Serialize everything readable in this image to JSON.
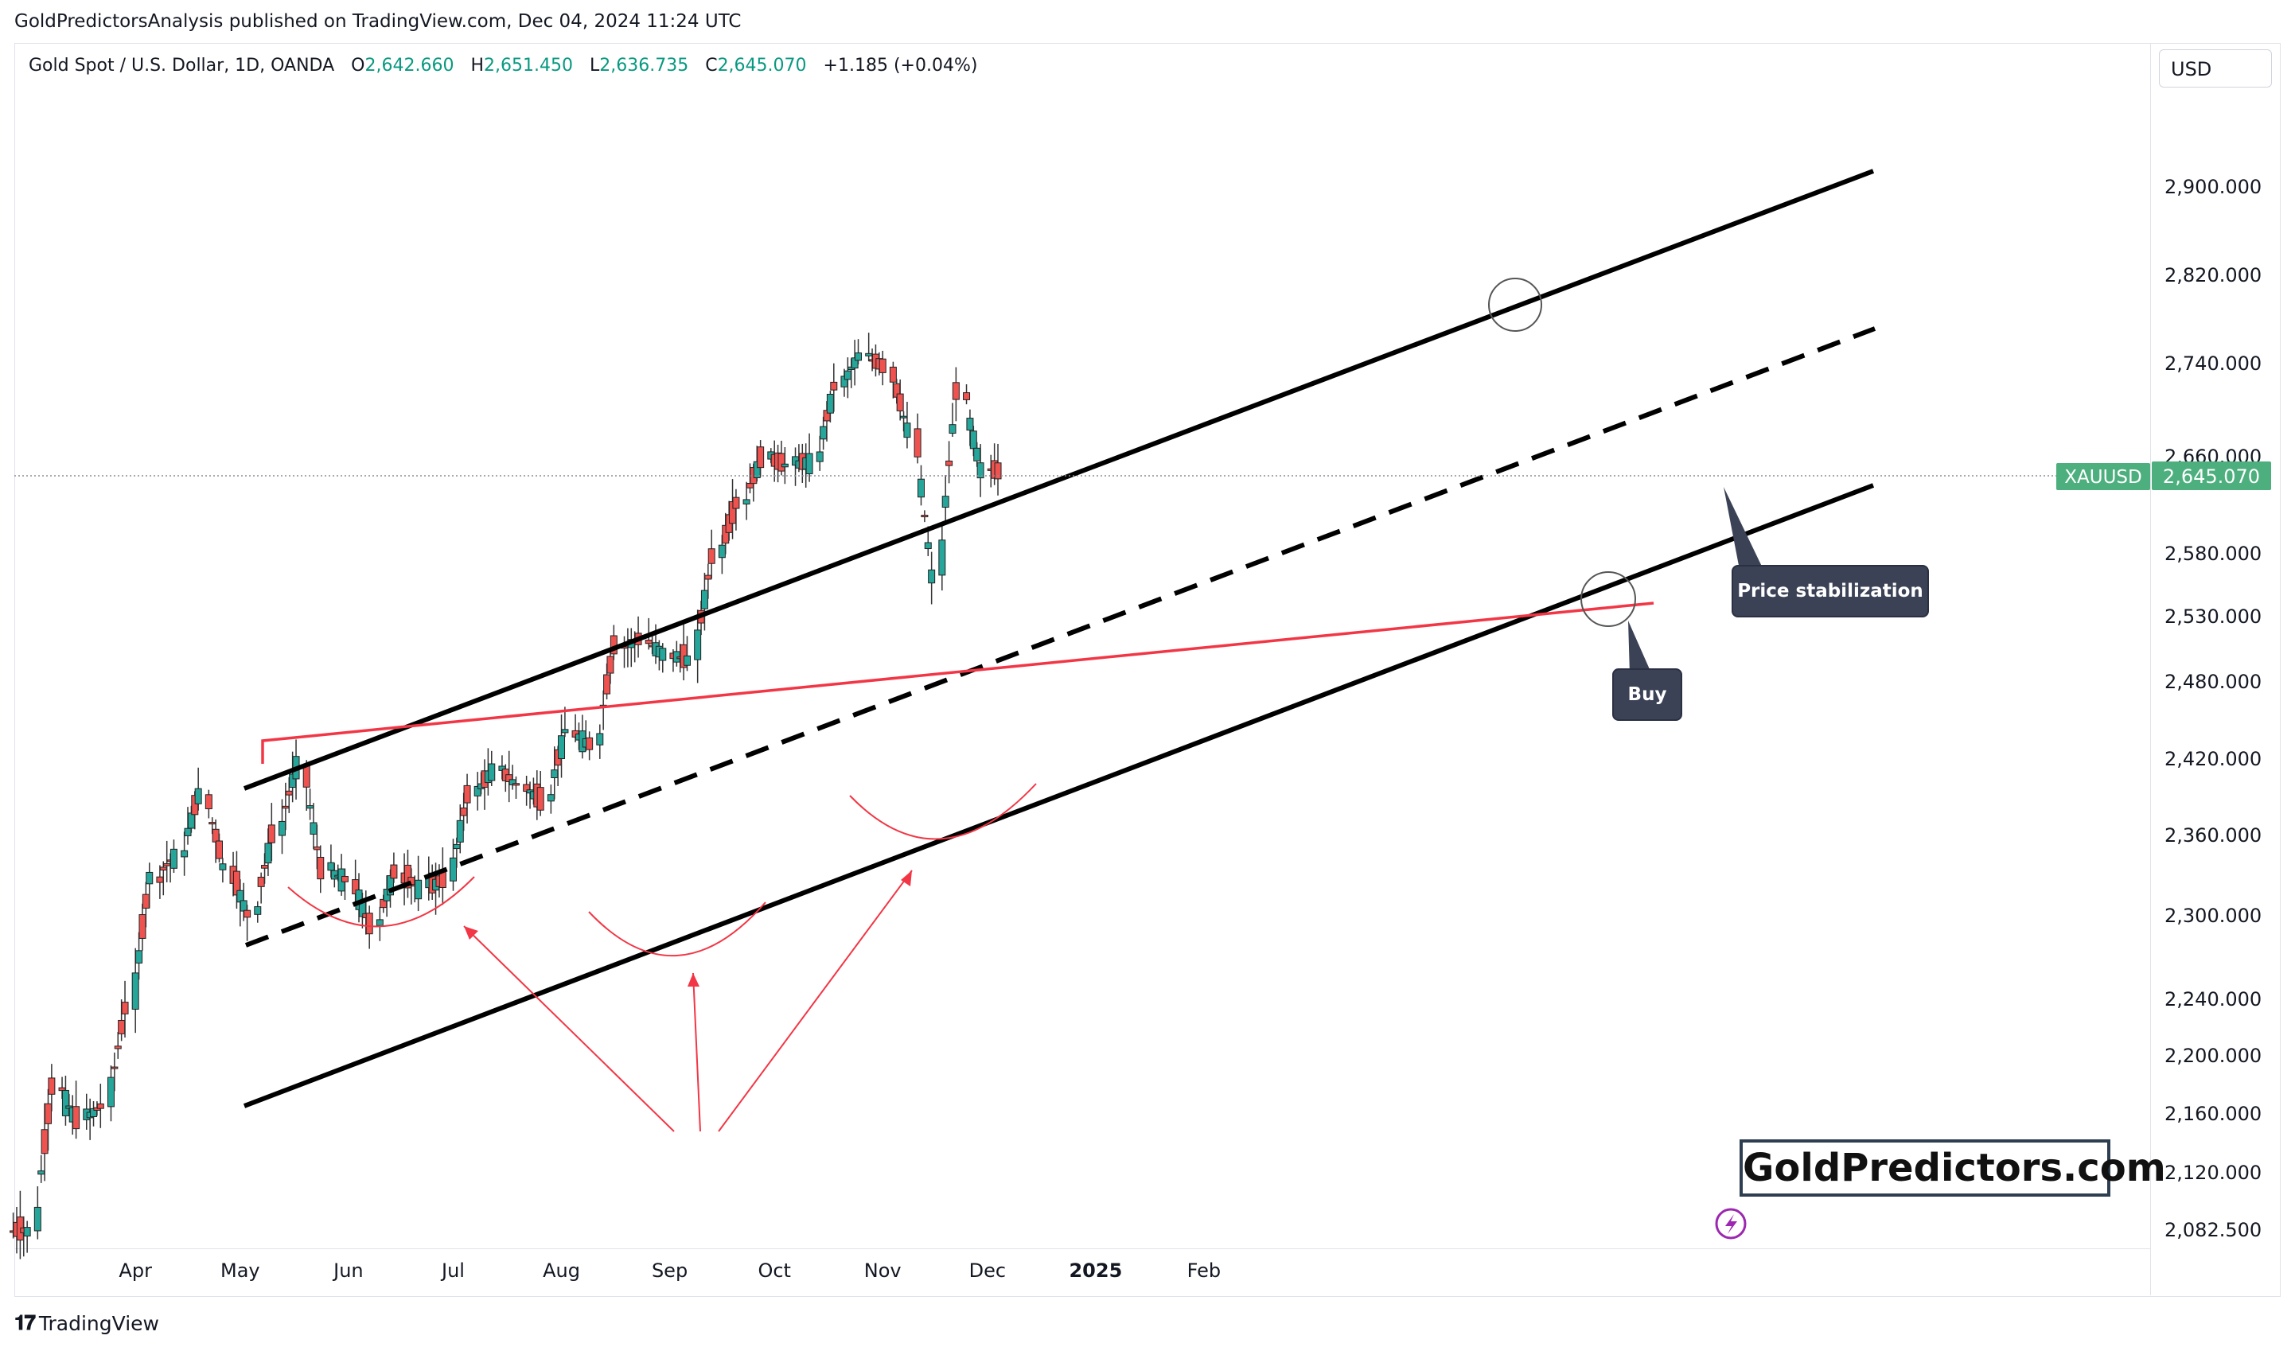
{
  "publisher_line": "GoldPredictorsAnalysis published on TradingView.com, Dec 04, 2024 11:24 UTC",
  "legend": {
    "symbol": "Gold Spot / U.S. Dollar, 1D, OANDA",
    "open_label": "O",
    "open": "2,642.660",
    "high_label": "H",
    "high": "2,651.450",
    "low_label": "L",
    "low": "2,636.735",
    "close_label": "C",
    "close": "2,645.070",
    "change": "+1.185 (+0.04%)"
  },
  "currency_button": "USD",
  "price_tag": {
    "symbol": "XAUUSD",
    "value": "2,645.070",
    "color": "#4caf7d"
  },
  "footer_brand": "TradingView",
  "watermark": "GoldPredictors.com",
  "annotations": {
    "buy": "Buy",
    "price_stabilization": "Price stabilization"
  },
  "colors": {
    "up": "#26a69a",
    "down": "#ef5350",
    "channel": "#000000",
    "trendline": "#f23645",
    "annotation_arrows": "#f23645"
  },
  "chart_data": {
    "type": "candlestick",
    "title": "Gold Spot / U.S. Dollar, 1D, OANDA",
    "y_axis": {
      "ticks": [
        2082.5,
        2120,
        2160,
        2200,
        2240,
        2300,
        2360,
        2420,
        2480,
        2530,
        2580,
        2660,
        2740,
        2820,
        2900
      ],
      "tick_labels": [
        "2,082.500",
        "2,120.000",
        "2,160.000",
        "2,200.000",
        "2,240.000",
        "2,300.000",
        "2,360.000",
        "2,420.000",
        "2,480.000",
        "2,530.000",
        "2,580.000",
        "2,660.000",
        "2,740.000",
        "2,820.000",
        "2,900.000"
      ]
    },
    "x_axis": {
      "tick_labels": [
        "Apr",
        "May",
        "Jun",
        "Jul",
        "Aug",
        "Sep",
        "Oct",
        "Nov",
        "Dec",
        "2025",
        "Feb"
      ],
      "tick_dates": [
        "2024-04-01",
        "2024-05-01",
        "2024-06-01",
        "2024-07-01",
        "2024-08-01",
        "2024-09-01",
        "2024-10-01",
        "2024-11-01",
        "2024-12-01",
        "2025-01-01",
        "2025-02-01"
      ],
      "range": [
        "2024-02-27",
        "2025-02-11"
      ]
    },
    "last_price": 2645.07,
    "weekly_closes": [
      {
        "week": "2024-02-26",
        "close": 2082
      },
      {
        "week": "2024-03-04",
        "close": 2178
      },
      {
        "week": "2024-03-11",
        "close": 2156
      },
      {
        "week": "2024-03-18",
        "close": 2165
      },
      {
        "week": "2024-03-25",
        "close": 2233
      },
      {
        "week": "2024-04-01",
        "close": 2329
      },
      {
        "week": "2024-04-08",
        "close": 2344
      },
      {
        "week": "2024-04-15",
        "close": 2392
      },
      {
        "week": "2024-04-22",
        "close": 2337
      },
      {
        "week": "2024-04-29",
        "close": 2301
      },
      {
        "week": "2024-05-06",
        "close": 2360
      },
      {
        "week": "2024-05-13",
        "close": 2415
      },
      {
        "week": "2024-05-20",
        "close": 2334
      },
      {
        "week": "2024-05-27",
        "close": 2327
      },
      {
        "week": "2024-06-03",
        "close": 2293
      },
      {
        "week": "2024-06-10",
        "close": 2332
      },
      {
        "week": "2024-06-17",
        "close": 2321
      },
      {
        "week": "2024-06-24",
        "close": 2326
      },
      {
        "week": "2024-07-01",
        "close": 2391
      },
      {
        "week": "2024-07-08",
        "close": 2411
      },
      {
        "week": "2024-07-15",
        "close": 2400
      },
      {
        "week": "2024-07-22",
        "close": 2387
      },
      {
        "week": "2024-07-29",
        "close": 2442
      },
      {
        "week": "2024-08-05",
        "close": 2431
      },
      {
        "week": "2024-08-12",
        "close": 2507
      },
      {
        "week": "2024-08-19",
        "close": 2512
      },
      {
        "week": "2024-08-26",
        "close": 2502
      },
      {
        "week": "2024-09-02",
        "close": 2497
      },
      {
        "week": "2024-09-09",
        "close": 2577
      },
      {
        "week": "2024-09-16",
        "close": 2621
      },
      {
        "week": "2024-09-23",
        "close": 2658
      },
      {
        "week": "2024-09-30",
        "close": 2653
      },
      {
        "week": "2024-10-07",
        "close": 2656
      },
      {
        "week": "2024-10-14",
        "close": 2720
      },
      {
        "week": "2024-10-21",
        "close": 2747
      },
      {
        "week": "2024-10-28",
        "close": 2737
      },
      {
        "week": "2024-11-04",
        "close": 2684
      },
      {
        "week": "2024-11-11",
        "close": 2563
      },
      {
        "week": "2024-11-18",
        "close": 2715
      },
      {
        "week": "2024-11-25",
        "close": 2650
      },
      {
        "week": "2024-12-02",
        "close": 2645
      }
    ],
    "channel": {
      "upper": [
        {
          "date": "2024-04-10",
          "price": 2402
        },
        {
          "date": "2024-12-08",
          "price": 2920
        }
      ],
      "middle": [
        {
          "date": "2024-04-10",
          "price": 2281
        },
        {
          "date": "2024-12-08",
          "price": 2770
        }
      ],
      "lower": [
        {
          "date": "2024-04-10",
          "price": 2172
        },
        {
          "date": "2024-12-08",
          "price": 2635
        }
      ]
    },
    "trendline": [
      {
        "date": "2024-04-12",
        "price": 2431
      },
      {
        "date": "2024-11-24",
        "price": 2540
      }
    ],
    "legend": "none",
    "grid": false
  }
}
